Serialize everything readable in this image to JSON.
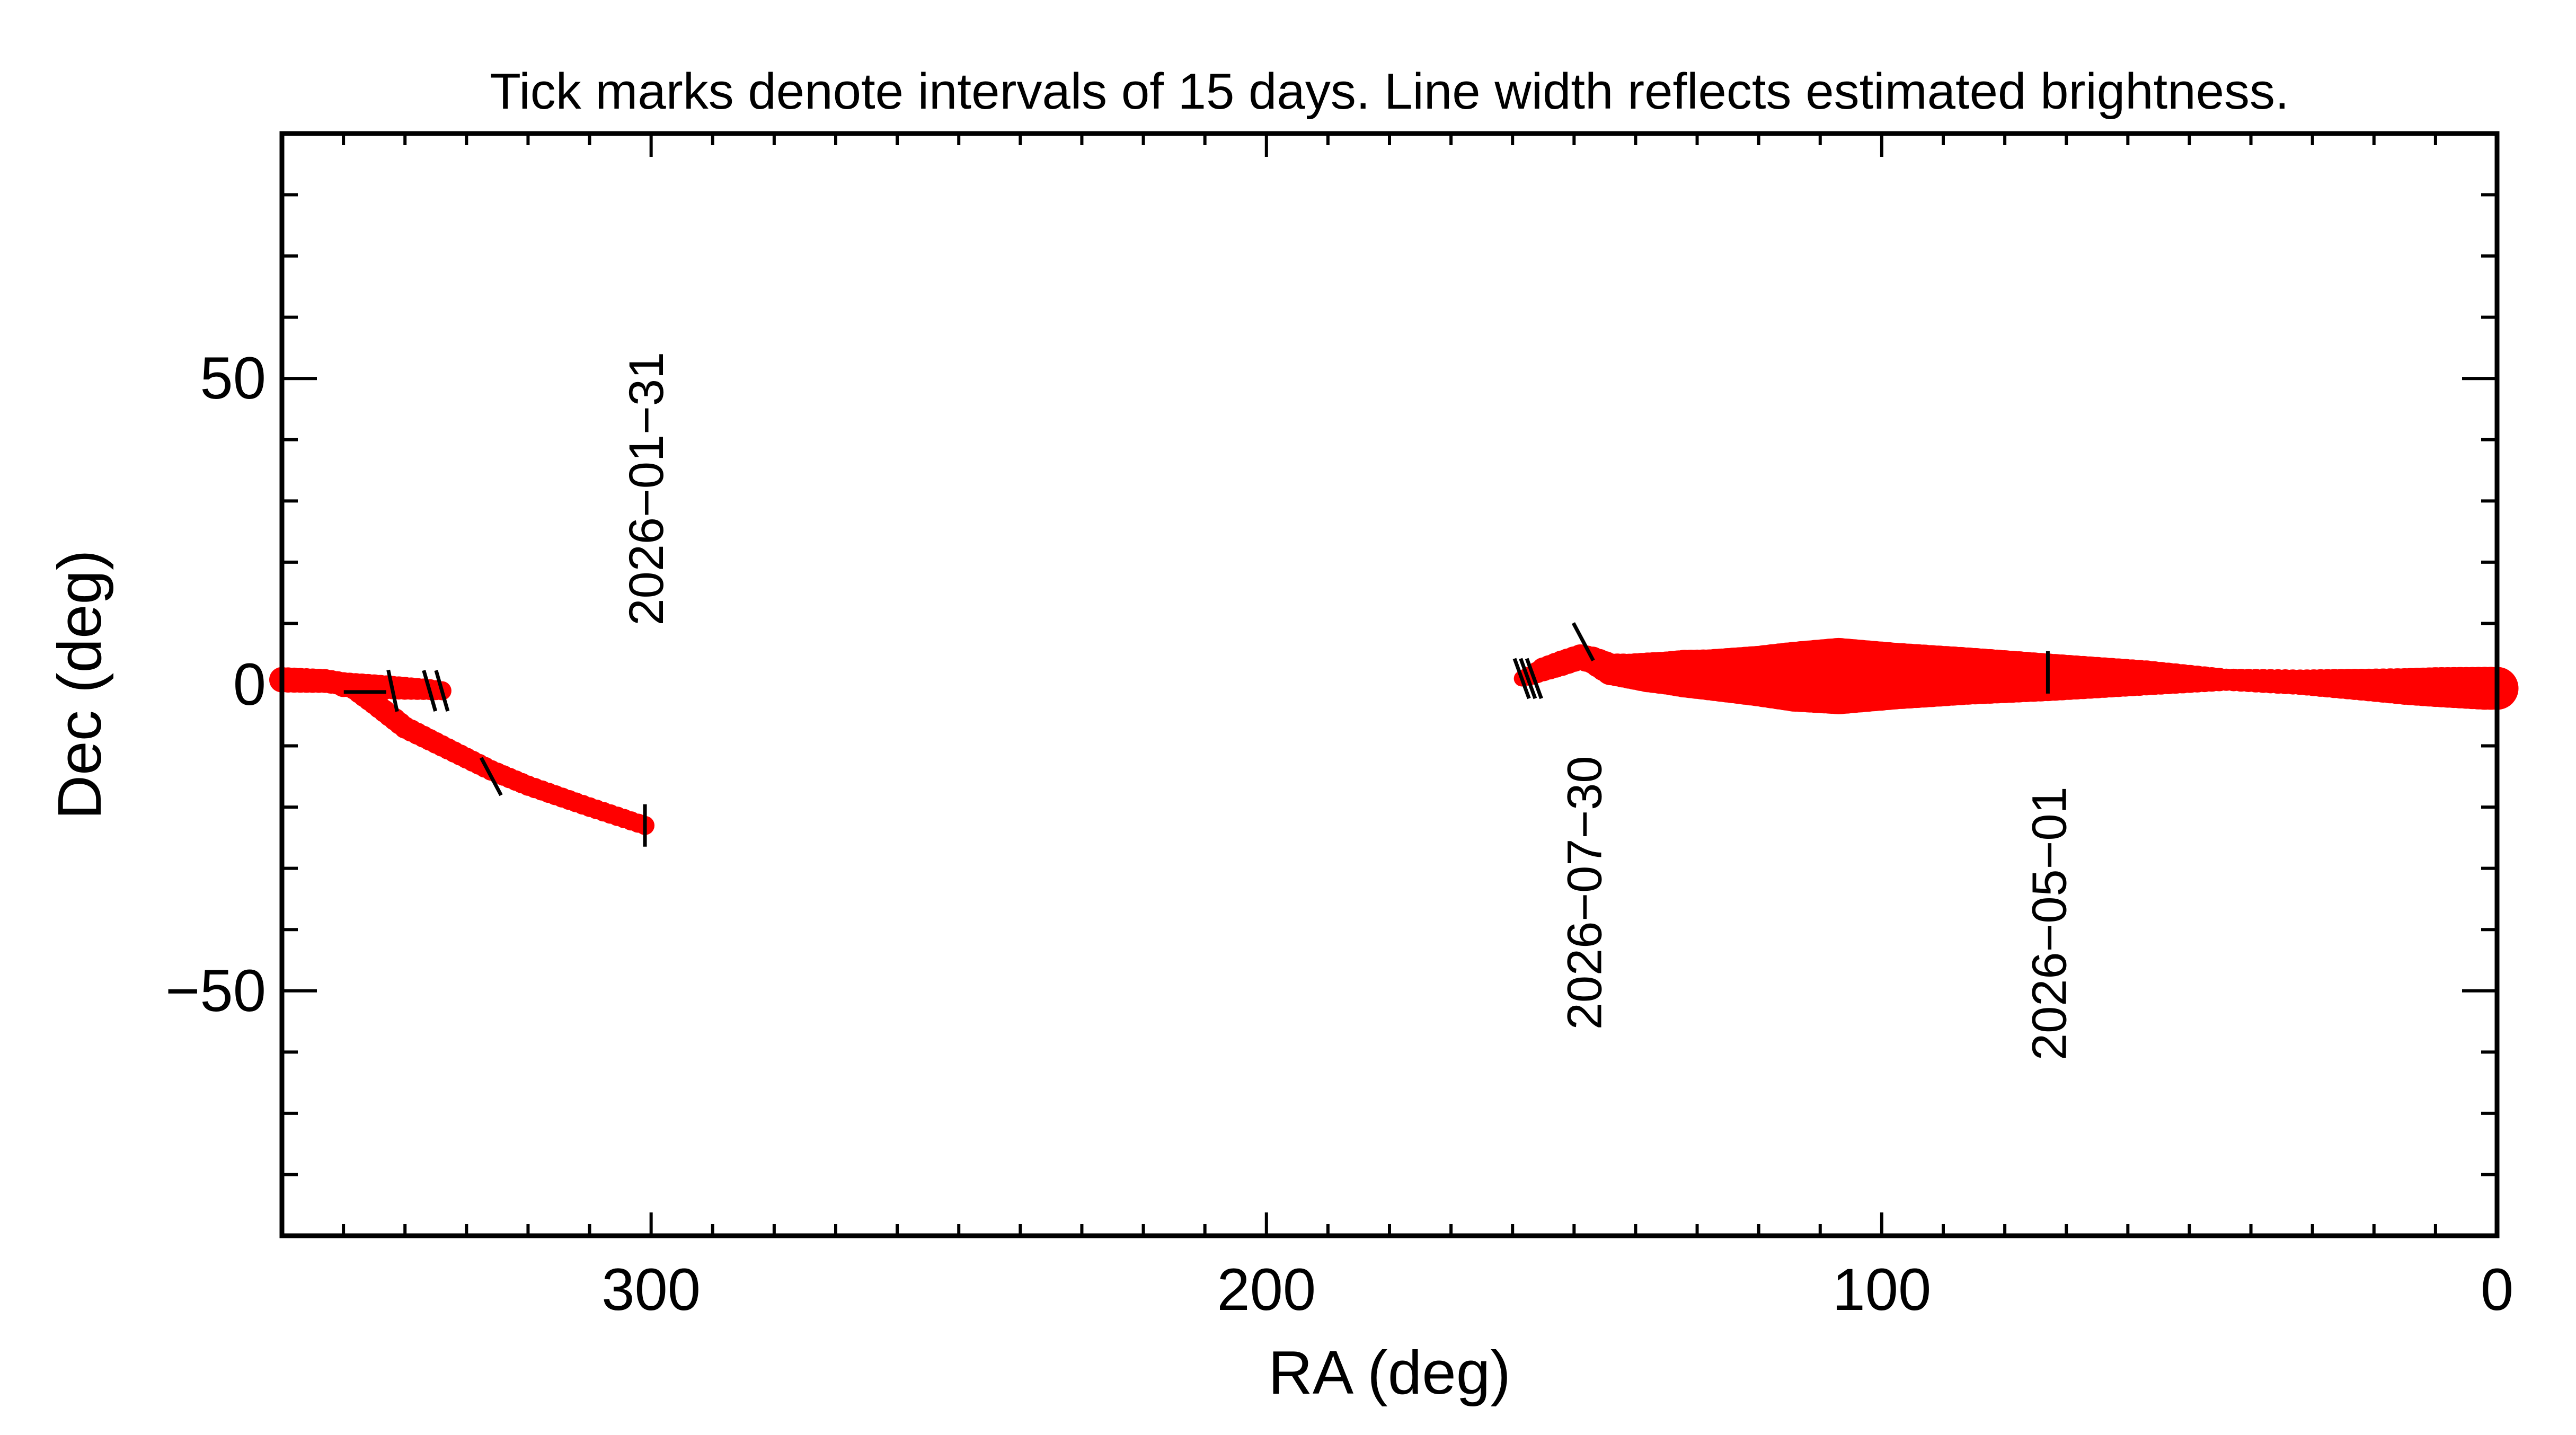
{
  "colors": {
    "track": "#ff0000",
    "ink": "#000000",
    "background": "#ffffff"
  },
  "chart_data": {
    "type": "scatter",
    "title": "Tick marks denote intervals of 15 days.  Line width reflects estimated brightness.",
    "xlabel": "RA (deg)",
    "ylabel": "Dec (deg)",
    "xlim": [
      360,
      0
    ],
    "ylim": [
      -90,
      90
    ],
    "x_reversed": true,
    "grid": false,
    "xticks": [
      {
        "value": 300,
        "label": "300"
      },
      {
        "value": 200,
        "label": "200"
      },
      {
        "value": 100,
        "label": "100"
      },
      {
        "value": 0,
        "label": "0"
      }
    ],
    "yticks": [
      {
        "value": 50,
        "label": "50"
      },
      {
        "value": 0,
        "label": "0"
      },
      {
        "value": -50,
        "label": "−50"
      }
    ],
    "x_minor_step": 10,
    "y_minor_step": 10,
    "series": [
      {
        "points": [
          {
            "ra": 301,
            "dec": -23,
            "w": 0.6
          },
          {
            "ra": 310,
            "dec": -20,
            "w": 0.62
          },
          {
            "ra": 320,
            "dec": -16.5,
            "w": 0.64
          },
          {
            "ra": 326,
            "dec": -14,
            "w": 0.65
          },
          {
            "ra": 333,
            "dec": -10.5,
            "w": 0.67
          },
          {
            "ra": 340,
            "dec": -7,
            "w": 0.7
          },
          {
            "ra": 345,
            "dec": -3,
            "w": 0.72
          },
          {
            "ra": 349,
            "dec": 0,
            "w": 0.72
          },
          {
            "ra": 353,
            "dec": 0.6,
            "w": 0.75
          },
          {
            "ra": 357,
            "dec": 0.7,
            "w": 0.78
          },
          {
            "ra": 360,
            "dec": 0.8,
            "w": 0.8
          }
        ]
      },
      {
        "points": [
          {
            "ra": 350,
            "dec": 0,
            "w": 0.78
          },
          {
            "ra": 345,
            "dec": -0.3,
            "w": 0.76
          },
          {
            "ra": 340,
            "dec": -0.6,
            "w": 0.72
          },
          {
            "ra": 336,
            "dec": -0.8,
            "w": 0.66
          },
          {
            "ra": 334,
            "dec": -1.0,
            "w": 0.6
          }
        ]
      },
      {
        "points": [
          {
            "ra": 158.5,
            "dec": 1,
            "w": 0.5
          },
          {
            "ra": 157,
            "dec": 1.5,
            "w": 0.6
          },
          {
            "ra": 155,
            "dec": 2.5,
            "w": 0.75
          },
          {
            "ra": 152,
            "dec": 3.5,
            "w": 0.8
          },
          {
            "ra": 149,
            "dec": 4.5,
            "w": 0.8
          },
          {
            "ra": 147,
            "dec": 4,
            "w": 0.85
          },
          {
            "ra": 144,
            "dec": 2.5,
            "w": 1.0
          },
          {
            "ra": 141,
            "dec": 2.2,
            "w": 1.1
          },
          {
            "ra": 138,
            "dec": 2.0,
            "w": 1.25
          },
          {
            "ra": 135,
            "dec": 1.9,
            "w": 1.35
          },
          {
            "ra": 132,
            "dec": 1.8,
            "w": 1.5
          },
          {
            "ra": 128,
            "dec": 1.6,
            "w": 1.6
          },
          {
            "ra": 124,
            "dec": 1.5,
            "w": 1.75
          },
          {
            "ra": 120,
            "dec": 1.4,
            "w": 1.9
          },
          {
            "ra": 114,
            "dec": 1.3,
            "w": 2.2
          },
          {
            "ra": 107,
            "dec": 1.4,
            "w": 2.4
          },
          {
            "ra": 98,
            "dec": 1.4,
            "w": 2.1
          },
          {
            "ra": 86,
            "dec": 1.4,
            "w": 1.8
          },
          {
            "ra": 73,
            "dec": 1.2,
            "w": 1.5
          },
          {
            "ra": 57,
            "dec": 1.1,
            "w": 1.1
          },
          {
            "ra": 44,
            "dec": 0.8,
            "w": 0.7
          },
          {
            "ra": 32,
            "dec": 0.4,
            "w": 0.8
          },
          {
            "ra": 22,
            "dec": 0.0,
            "w": 1.0
          },
          {
            "ra": 15,
            "dec": -0.3,
            "w": 1.15
          },
          {
            "ra": 10,
            "dec": -0.4,
            "w": 1.25
          },
          {
            "ra": 6,
            "dec": -0.5,
            "w": 1.3
          },
          {
            "ra": 2,
            "dec": -0.6,
            "w": 1.35
          },
          {
            "ra": 0,
            "dec": -0.6,
            "w": 1.35
          }
        ]
      }
    ],
    "interval_ticks": [
      {
        "ra": 301,
        "dec": -23,
        "angle": 90
      },
      {
        "ra": 326,
        "dec": -15,
        "angle": 62
      },
      {
        "ra": 342,
        "dec": -1,
        "angle": 78
      },
      {
        "ra": 336,
        "dec": -1,
        "angle": 74
      },
      {
        "ra": 334,
        "dec": -1,
        "angle": 74
      },
      {
        "ra": 346.5,
        "dec": -1.2,
        "angle": 0
      },
      {
        "ra": 158.5,
        "dec": 1,
        "angle": 70
      },
      {
        "ra": 157.5,
        "dec": 1,
        "angle": 70
      },
      {
        "ra": 156.5,
        "dec": 1,
        "angle": 70
      },
      {
        "ra": 148.5,
        "dec": 7,
        "angle": 62
      },
      {
        "ra": 73,
        "dec": 2,
        "angle": 90
      }
    ],
    "annotations": [
      {
        "text": "2026−01−31",
        "ra": 301,
        "dec": 32,
        "rotate": -90
      },
      {
        "text": "2026−07−30",
        "ra": 148.5,
        "dec": -34,
        "rotate": -90
      },
      {
        "text": "2026−05−01",
        "ra": 73,
        "dec": -39,
        "rotate": -90
      }
    ]
  }
}
